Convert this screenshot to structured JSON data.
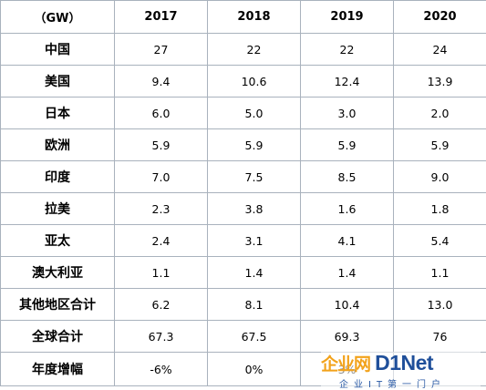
{
  "table": {
    "headers": [
      "（GW）",
      "2017",
      "2018",
      "2019",
      "2020"
    ],
    "rows": [
      {
        "label": "中国",
        "values": [
          "27",
          "22",
          "22",
          "24"
        ]
      },
      {
        "label": "美国",
        "values": [
          "9.4",
          "10.6",
          "12.4",
          "13.9"
        ]
      },
      {
        "label": "日本",
        "values": [
          "6.0",
          "5.0",
          "3.0",
          "2.0"
        ]
      },
      {
        "label": "欧洲",
        "values": [
          "5.9",
          "5.9",
          "5.9",
          "5.9"
        ]
      },
      {
        "label": "印度",
        "values": [
          "7.0",
          "7.5",
          "8.5",
          "9.0"
        ]
      },
      {
        "label": "拉美",
        "values": [
          "2.3",
          "3.8",
          "1.6",
          "1.8"
        ]
      },
      {
        "label": "亚太",
        "values": [
          "2.4",
          "3.1",
          "4.1",
          "5.4"
        ]
      },
      {
        "label": "澳大利亚",
        "values": [
          "1.1",
          "1.4",
          "1.4",
          "1.1"
        ]
      },
      {
        "label": "其他地区合计",
        "values": [
          "6.2",
          "8.1",
          "10.4",
          "13.0"
        ]
      },
      {
        "label": "全球合计",
        "values": [
          "67.3",
          "67.5",
          "69.3",
          "76"
        ]
      },
      {
        "label": "年度增幅",
        "values": [
          "-6%",
          "0%",
          "3%",
          ""
        ]
      }
    ]
  },
  "watermark": {
    "chinese": "企业网",
    "brand": "D1Net",
    "subtitle": "企业IT第一门户"
  }
}
